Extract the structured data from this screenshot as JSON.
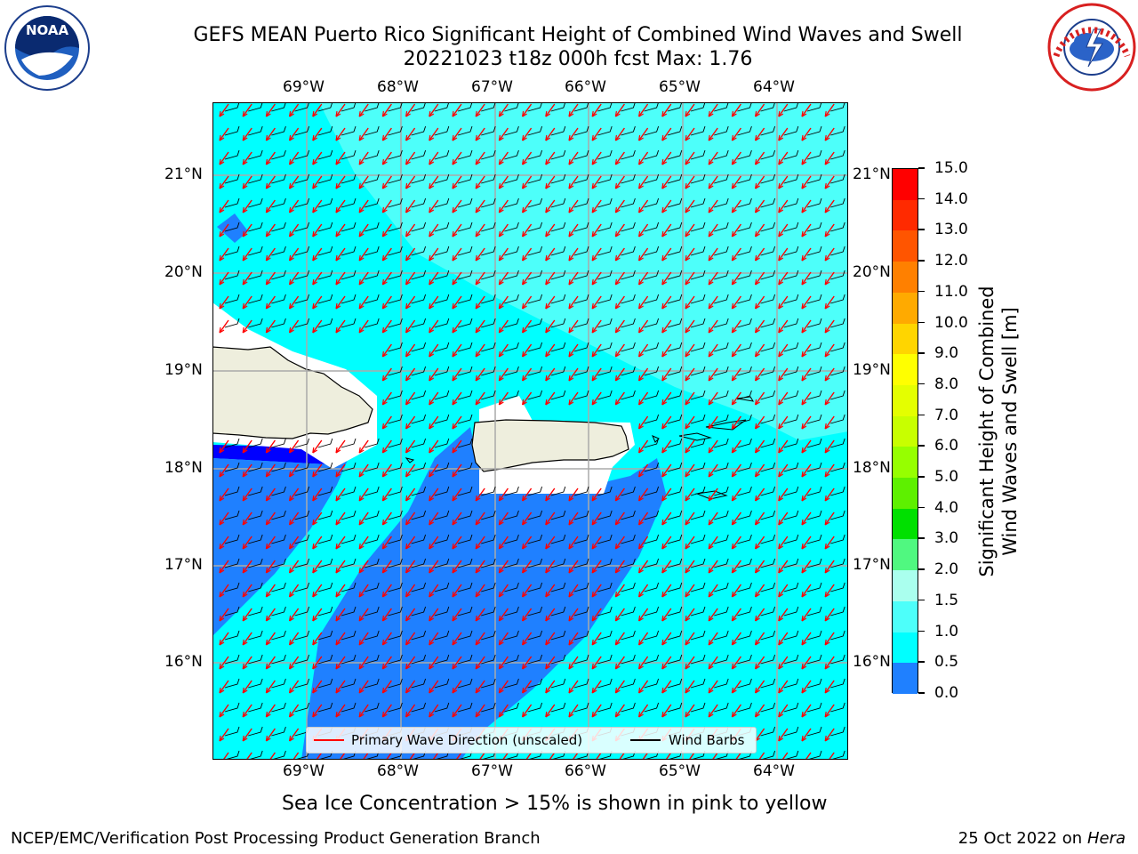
{
  "header": {
    "title_line1": "GEFS MEAN Puerto Rico Significant Height of Combined Wind Waves and Swell",
    "title_line2": "20221023 t18z 000h fcst   Max: 1.76"
  },
  "logos": {
    "left_text": "NOAA",
    "left_icon": "noaa-logo",
    "right_text": "NATIONAL WEATHER SERVICE",
    "right_icon": "nws-logo"
  },
  "map": {
    "lon_labels": [
      "69°W",
      "68°W",
      "67°W",
      "66°W",
      "65°W",
      "64°W"
    ],
    "lat_labels": [
      "21°N",
      "20°N",
      "19°N",
      "18°N",
      "17°N",
      "16°N"
    ],
    "colors": {
      "ocean_low": "#0000ff",
      "ocean_mid": "#1f80ff",
      "ocean": "#00ffff",
      "ocean_high": "#4dfffa",
      "land": "#eeeedd",
      "arrow": "#ff0000",
      "barb": "#000000"
    }
  },
  "legend": {
    "primary_wave": "Primary Wave Direction (unscaled)",
    "wind_barbs": "Wind Barbs"
  },
  "colorbar": {
    "label_line1": "Significant Height of Combined",
    "label_line2": "Wind Waves and Swell [m]",
    "ticks": [
      "15.0",
      "14.0",
      "13.0",
      "12.0",
      "11.0",
      "10.0",
      "9.0",
      "8.0",
      "7.0",
      "6.0",
      "5.0",
      "4.0",
      "3.0",
      "2.0",
      "1.5",
      "1.0",
      "0.5",
      "0.0"
    ],
    "colors": [
      "#ff0000",
      "#ff2a00",
      "#ff5500",
      "#ff8000",
      "#ffaa00",
      "#ffd500",
      "#ffff00",
      "#e4ff00",
      "#c8ff00",
      "#96ff00",
      "#5ef000",
      "#00e000",
      "#50f880",
      "#aaffee",
      "#4dfffa",
      "#00ffff",
      "#1f80ff",
      "#0000ff"
    ]
  },
  "footer": {
    "sea_ice": "Sea Ice Concentration > 15% is shown in pink to yellow",
    "branch": "NCEP/EMC/Verification Post Processing Product Generation Branch",
    "date": "25 Oct 2022 on",
    "machine": "Hera"
  }
}
